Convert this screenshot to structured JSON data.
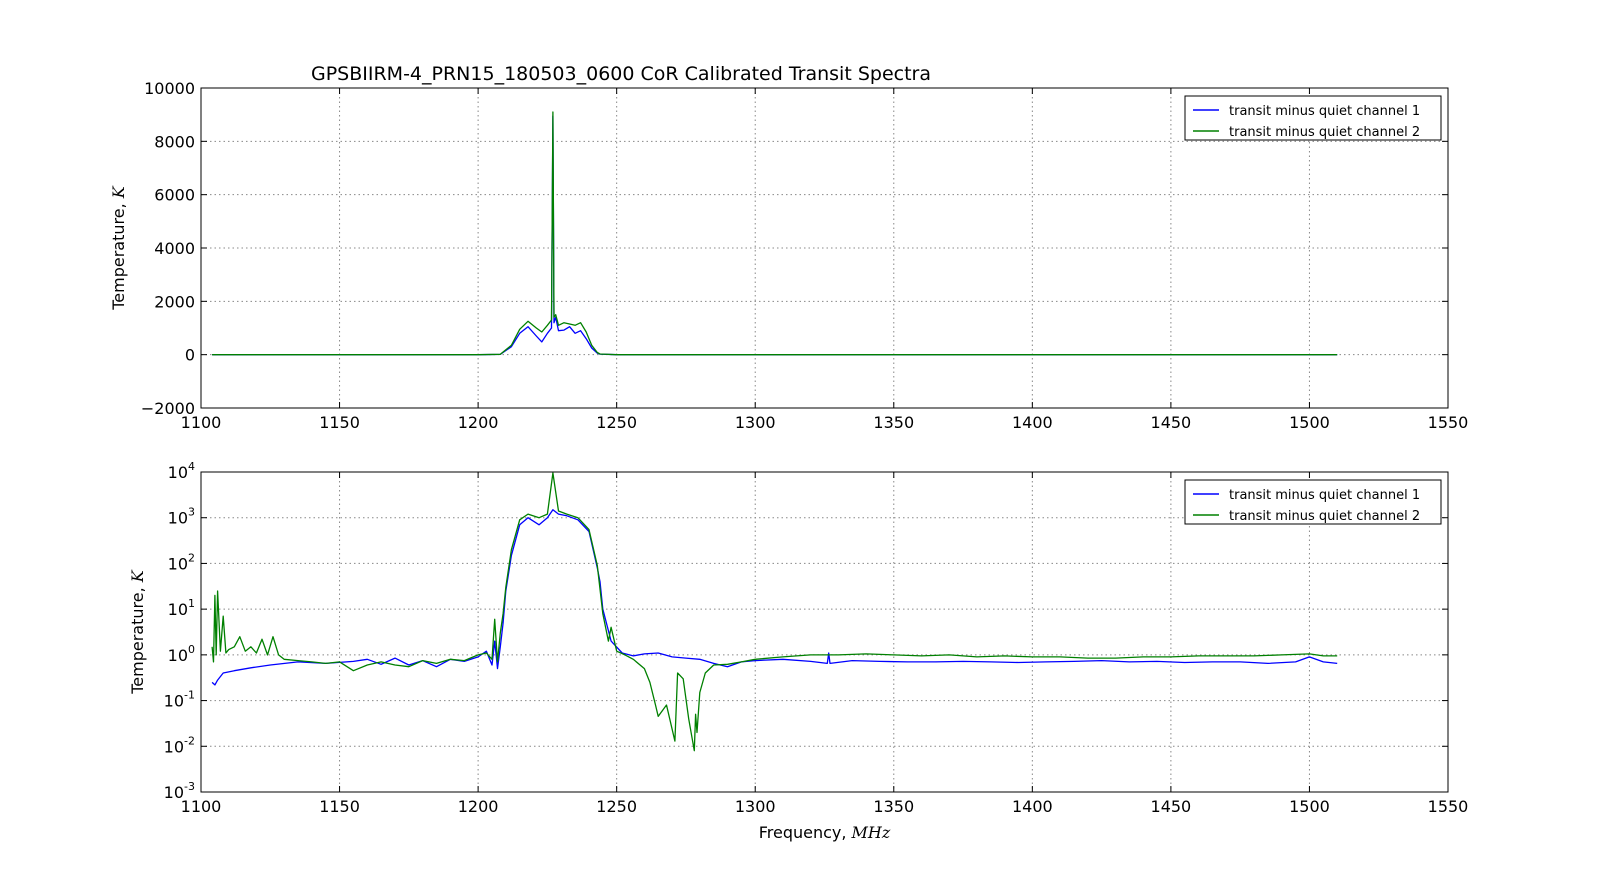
{
  "figure": {
    "title": "GPSBIIRM-4_PRN15_180503_0600 CoR Calibrated Transit Spectra"
  },
  "chart_data": [
    {
      "type": "line",
      "title": "GPSBIIRM-4_PRN15_180503_0600 CoR Calibrated Transit Spectra",
      "xlabel": "Frequency,",
      "xlabel_unit": "MHz",
      "ylabel": "Temperature,",
      "ylabel_unit": "K",
      "xlim": [
        1100,
        1550
      ],
      "ylim": [
        -2000,
        10000
      ],
      "yscale": "linear",
      "grid": true,
      "legend": "top-right",
      "xticks": [
        1100,
        1150,
        1200,
        1250,
        1300,
        1350,
        1400,
        1450,
        1500,
        1550
      ],
      "xtick_labels": [
        "1100",
        "1150",
        "1200",
        "1250",
        "1300",
        "1350",
        "1400",
        "1450",
        "1500",
        "1550"
      ],
      "yticks": [
        -2000,
        0,
        2000,
        4000,
        6000,
        8000,
        10000
      ],
      "ytick_labels": [
        "−2000",
        "0",
        "2000",
        "4000",
        "6000",
        "8000",
        "10000"
      ],
      "series": [
        {
          "name": "transit minus quiet channel 1",
          "color": "#0000ff",
          "x": [
            1104,
            1200,
            1208,
            1212,
            1215,
            1218,
            1221,
            1223,
            1225,
            1226.5,
            1227,
            1227.4,
            1228,
            1229,
            1231,
            1233,
            1235,
            1237,
            1239,
            1241,
            1243,
            1244,
            1250,
            1300,
            1326,
            1327,
            1350,
            1400,
            1450,
            1510
          ],
          "y": [
            0,
            0,
            10,
            300,
            800,
            1050,
            700,
            480,
            800,
            1000,
            8950,
            1200,
            1400,
            900,
            920,
            1050,
            800,
            900,
            600,
            250,
            60,
            20,
            0,
            0,
            0,
            0,
            0,
            0,
            0,
            0
          ]
        },
        {
          "name": "transit minus quiet channel 2",
          "color": "#008000",
          "x": [
            1104,
            1200,
            1208,
            1212,
            1215,
            1218,
            1221,
            1223,
            1225,
            1226.5,
            1227,
            1227.4,
            1228,
            1229,
            1231,
            1233,
            1235,
            1237,
            1239,
            1241,
            1243,
            1244,
            1250,
            1300,
            1350,
            1400,
            1450,
            1510
          ],
          "y": [
            0,
            0,
            15,
            350,
            950,
            1250,
            1000,
            850,
            1100,
            1300,
            9100,
            1400,
            1500,
            1100,
            1200,
            1150,
            1100,
            1200,
            850,
            350,
            80,
            25,
            0,
            0,
            0,
            0,
            0,
            0
          ]
        }
      ]
    },
    {
      "type": "line",
      "title": "",
      "xlabel": "Frequency,",
      "xlabel_unit": "MHz",
      "ylabel": "Temperature,",
      "ylabel_unit": "K",
      "xlim": [
        1100,
        1550
      ],
      "ylim": [
        0.001,
        10000
      ],
      "yscale": "log",
      "grid": true,
      "legend": "top-right",
      "xticks": [
        1100,
        1150,
        1200,
        1250,
        1300,
        1350,
        1400,
        1450,
        1500,
        1550
      ],
      "xtick_labels": [
        "1100",
        "1150",
        "1200",
        "1250",
        "1300",
        "1350",
        "1400",
        "1450",
        "1500",
        "1550"
      ],
      "yticks": [
        0.001,
        0.01,
        0.1,
        1,
        10,
        100,
        1000,
        10000
      ],
      "ytick_exponents": [
        "-3",
        "-2",
        "-1",
        "0",
        "1",
        "2",
        "3",
        "4"
      ],
      "ytick_base": "10",
      "series": [
        {
          "name": "transit minus quiet channel 1",
          "color": "#0000ff",
          "x": [
            1104,
            1105,
            1106,
            1108,
            1112,
            1118,
            1125,
            1135,
            1145,
            1155,
            1160,
            1165,
            1170,
            1175,
            1180,
            1185,
            1190,
            1195,
            1200,
            1203,
            1205,
            1206,
            1207,
            1208,
            1209,
            1210,
            1212,
            1215,
            1218,
            1222,
            1225,
            1227,
            1229,
            1232,
            1236,
            1240,
            1243,
            1244,
            1245,
            1248,
            1252,
            1256,
            1260,
            1265,
            1270,
            1275,
            1280,
            1285,
            1290,
            1295,
            1300,
            1310,
            1320,
            1326,
            1326.5,
            1327,
            1335,
            1345,
            1355,
            1365,
            1375,
            1385,
            1395,
            1405,
            1415,
            1425,
            1435,
            1445,
            1455,
            1465,
            1475,
            1485,
            1495,
            1500,
            1505,
            1510
          ],
          "y": [
            0.25,
            0.22,
            0.28,
            0.4,
            0.45,
            0.52,
            0.6,
            0.7,
            0.65,
            0.72,
            0.8,
            0.62,
            0.85,
            0.6,
            0.75,
            0.55,
            0.8,
            0.72,
            0.9,
            1.2,
            0.6,
            2.0,
            0.5,
            1.5,
            5,
            25,
            150,
            700,
            1000,
            700,
            1000,
            1500,
            1200,
            1100,
            900,
            500,
            80,
            40,
            10,
            2,
            1.1,
            0.95,
            1.05,
            1.1,
            0.9,
            0.85,
            0.8,
            0.65,
            0.55,
            0.7,
            0.75,
            0.8,
            0.72,
            0.65,
            1.1,
            0.65,
            0.75,
            0.72,
            0.7,
            0.7,
            0.72,
            0.7,
            0.68,
            0.7,
            0.72,
            0.75,
            0.7,
            0.72,
            0.68,
            0.7,
            0.7,
            0.65,
            0.7,
            0.9,
            0.7,
            0.65
          ]
        },
        {
          "name": "transit minus quiet channel 2",
          "color": "#008000",
          "x": [
            1104,
            1104.5,
            1105,
            1105.5,
            1106,
            1107,
            1108,
            1109,
            1110,
            1112,
            1114,
            1116,
            1118,
            1120,
            1122,
            1124,
            1126,
            1128,
            1130,
            1135,
            1140,
            1145,
            1150,
            1155,
            1160,
            1165,
            1170,
            1175,
            1180,
            1185,
            1190,
            1195,
            1200,
            1203,
            1205,
            1206,
            1207,
            1208,
            1209,
            1210,
            1212,
            1215,
            1218,
            1222,
            1225,
            1227,
            1229,
            1232,
            1236,
            1240,
            1243,
            1245,
            1247,
            1248,
            1250,
            1253,
            1256,
            1260,
            1262,
            1264,
            1265,
            1268,
            1271,
            1272,
            1274,
            1276,
            1278,
            1278.5,
            1279,
            1280,
            1282,
            1285,
            1290,
            1295,
            1300,
            1310,
            1320,
            1330,
            1340,
            1350,
            1360,
            1370,
            1380,
            1390,
            1400,
            1410,
            1420,
            1430,
            1440,
            1450,
            1460,
            1470,
            1480,
            1490,
            1500,
            1505,
            1510
          ],
          "y": [
            1.5,
            0.7,
            20,
            1.0,
            25,
            1.2,
            7,
            1.1,
            1.3,
            1.5,
            2.5,
            1.2,
            1.5,
            1.1,
            2.2,
            1.0,
            2.5,
            1.0,
            0.8,
            0.75,
            0.7,
            0.65,
            0.7,
            0.45,
            0.6,
            0.7,
            0.6,
            0.55,
            0.75,
            0.65,
            0.8,
            0.75,
            1.0,
            1.1,
            0.8,
            6,
            0.7,
            3,
            8,
            30,
            200,
            900,
            1200,
            1000,
            1200,
            9500,
            1400,
            1200,
            1000,
            550,
            90,
            8,
            2,
            4,
            1.2,
            1.0,
            0.8,
            0.5,
            0.25,
            0.08,
            0.045,
            0.08,
            0.013,
            0.4,
            0.3,
            0.04,
            0.008,
            0.05,
            0.02,
            0.15,
            0.4,
            0.6,
            0.62,
            0.7,
            0.8,
            0.9,
            1.0,
            1.0,
            1.05,
            1.0,
            0.95,
            1.0,
            0.9,
            0.95,
            0.9,
            0.9,
            0.85,
            0.85,
            0.9,
            0.9,
            0.95,
            0.95,
            0.95,
            1.0,
            1.05,
            0.95,
            0.95
          ]
        }
      ]
    }
  ]
}
